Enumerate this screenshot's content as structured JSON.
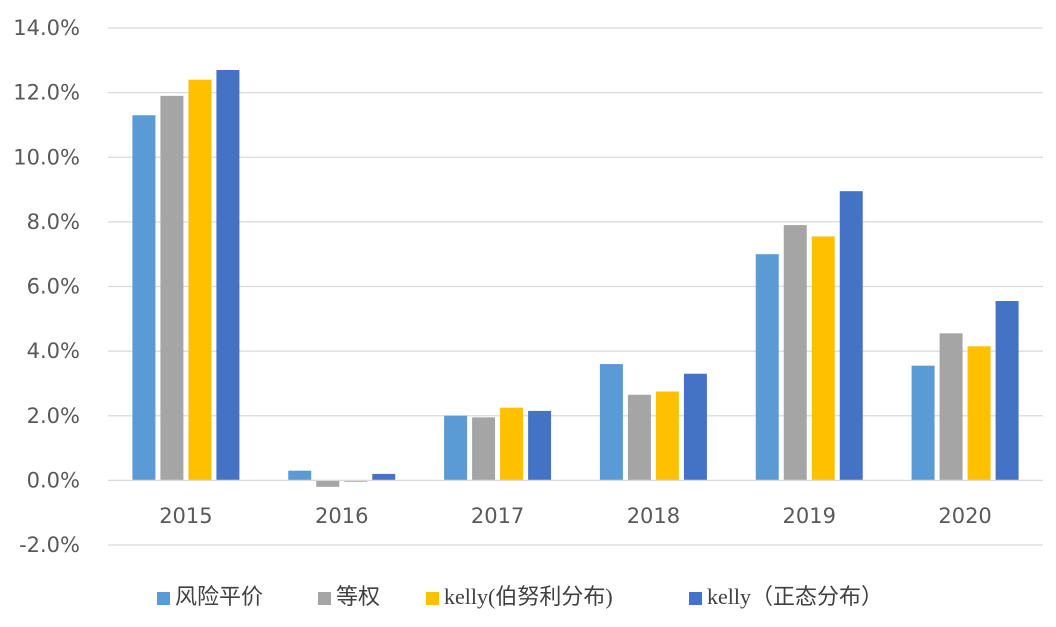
{
  "chart_data": {
    "type": "bar",
    "title": "",
    "xlabel": "",
    "ylabel": "",
    "categories": [
      "2015",
      "2016",
      "2017",
      "2018",
      "2019",
      "2020"
    ],
    "ylim": [
      -2.0,
      14.0
    ],
    "yticks": [
      -2.0,
      0.0,
      2.0,
      4.0,
      6.0,
      8.0,
      10.0,
      12.0,
      14.0
    ],
    "ytick_labels": [
      "-2.0%",
      "0.0%",
      "2.0%",
      "4.0%",
      "6.0%",
      "8.0%",
      "10.0%",
      "12.0%",
      "14.0%"
    ],
    "grid": true,
    "legend_position": "bottom",
    "series": [
      {
        "name": "风险平价",
        "color": "#5b9bd5",
        "values": [
          11.3,
          0.3,
          2.0,
          3.6,
          7.0,
          3.55
        ]
      },
      {
        "name": "等权",
        "color": "#a5a5a5",
        "values": [
          11.9,
          -0.2,
          1.95,
          2.65,
          7.9,
          4.55
        ]
      },
      {
        "name": "kelly(伯努利分布)",
        "color": "#ffc000",
        "values": [
          12.4,
          -0.05,
          2.25,
          2.75,
          7.55,
          4.15
        ]
      },
      {
        "name": "kelly（正态分布）",
        "color": "#4472c4",
        "values": [
          12.7,
          0.2,
          2.15,
          3.3,
          8.95,
          5.55
        ]
      }
    ]
  }
}
